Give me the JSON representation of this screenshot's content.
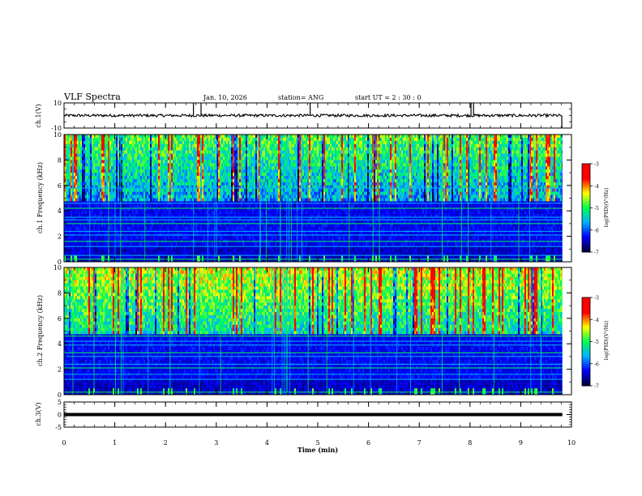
{
  "header": {
    "title": "VLF Spectra",
    "date": "Jan. 10, 2026",
    "station": "station= ANG",
    "start": "start  UT =  2 : 30 : 0"
  },
  "colors": {
    "trace": "#000000",
    "colormap": [
      "#00003c",
      "#0000ff",
      "#00b4ff",
      "#00ff50",
      "#ffff00",
      "#ff0000",
      "#ff0000"
    ]
  },
  "chart_data": [
    {
      "type": "line",
      "id": "ch1-waveform",
      "ylabel": "ch.1(V)",
      "ylim": [
        -10,
        10
      ],
      "yticks": [
        10,
        -10
      ],
      "xlim": [
        0,
        10
      ],
      "baseline": 0,
      "spikes": [
        {
          "x": 2.55,
          "y": 10
        },
        {
          "x": 2.7,
          "y": 10
        },
        {
          "x": 4.85,
          "y": 10
        },
        {
          "x": 8.02,
          "y": 10
        },
        {
          "x": 8.07,
          "y": 10
        },
        {
          "x": 9.81,
          "y": -10
        }
      ]
    },
    {
      "type": "heatmap",
      "id": "ch1-spectrogram",
      "ylabel": "ch.1 Frequency (kHz)",
      "ylim": [
        0,
        10
      ],
      "yticks": [
        0,
        2,
        4,
        6,
        8,
        10
      ],
      "xlim": [
        0,
        9.82
      ],
      "colorbar": {
        "label": "log(PSD)(V²/Hz)",
        "ticks": [
          -3,
          -4,
          -5,
          -6,
          -7
        ],
        "range": [
          -7,
          -3
        ]
      },
      "bands_khz": [
        0.2,
        0.5,
        1.2,
        1.6,
        2.1,
        2.4,
        3.0,
        3.3,
        3.5,
        4.2,
        4.6,
        5.8
      ]
    },
    {
      "type": "heatmap",
      "id": "ch2-spectrogram",
      "ylabel": "ch.2 Frequency (kHz)",
      "ylim": [
        0,
        10
      ],
      "yticks": [
        0,
        2,
        4,
        6,
        8,
        10
      ],
      "xlim": [
        0,
        9.82
      ],
      "colorbar": {
        "label": "log(PSD)(V²/Hz)",
        "ticks": [
          -3,
          -4,
          -5,
          -6,
          -7
        ],
        "range": [
          -7,
          -3
        ]
      },
      "bands_khz": [
        0.2,
        1.2,
        1.6,
        2.1,
        2.4,
        3.0,
        3.3,
        3.9,
        4.2,
        4.6
      ]
    },
    {
      "type": "line",
      "id": "ch3-waveform",
      "ylabel": "ch.3(V)",
      "ylim": [
        -5,
        5
      ],
      "yticks": [
        5,
        0,
        -5
      ],
      "xlim": [
        0,
        9.82
      ],
      "baseline": 0
    }
  ],
  "xaxis": {
    "label": "Time (min)",
    "ticks": [
      0,
      1,
      2,
      3,
      4,
      5,
      6,
      7,
      8,
      9,
      10
    ],
    "xlim": [
      0,
      10
    ]
  }
}
